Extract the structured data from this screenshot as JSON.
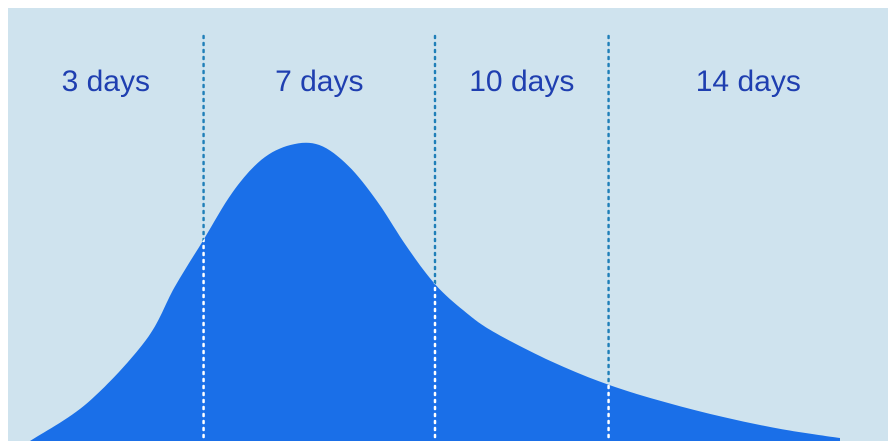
{
  "chart_data": {
    "type": "area",
    "title": "",
    "xlabel": "",
    "ylabel": "",
    "axes_visible": false,
    "grid": false,
    "legend": "none",
    "xlim": [
      0,
      14
    ],
    "ylim": [
      0,
      1
    ],
    "period_labels": [
      "3 days",
      "7 days",
      "10 days",
      "14 days"
    ],
    "dividers": [
      3,
      7,
      10
    ],
    "curve": {
      "x": [
        0,
        1,
        2,
        2.5,
        3,
        3.5,
        4,
        4.5,
        5,
        5.5,
        6,
        6.5,
        7,
        7.5,
        8,
        9,
        10,
        11,
        12,
        13,
        14
      ],
      "y": [
        0.0,
        0.13,
        0.34,
        0.52,
        0.68,
        0.84,
        0.95,
        1.0,
        1.0,
        0.93,
        0.81,
        0.66,
        0.53,
        0.44,
        0.37,
        0.27,
        0.19,
        0.13,
        0.08,
        0.04,
        0.01
      ]
    },
    "colors": {
      "background": "#cfe3ee",
      "area": "#1a6fe8",
      "divider": "#1f7fb8",
      "label": "#1f3fb0"
    }
  }
}
